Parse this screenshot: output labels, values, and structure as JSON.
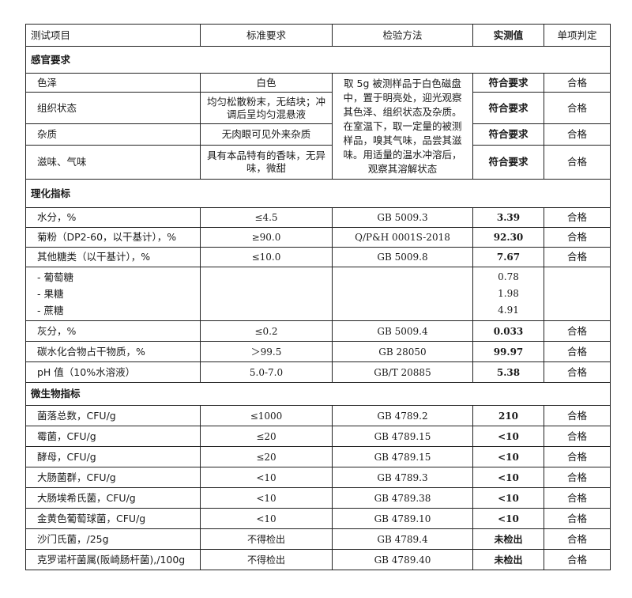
{
  "header": [
    "测试项目",
    "标准要求",
    "检验方法",
    "实测值",
    "单项判定"
  ],
  "sensory": {
    "title": "感官要求",
    "method": "取 5g 被测样品于白色磁盘中，置于明亮处，迎光观察其色泽、组织状态及杂质。在室温下，取一定量的被测样品，嗅其气味，品尝其滋味。用适量的温水冲溶后，观察其溶解状态",
    "rows": [
      {
        "item": "色泽",
        "standard": "白色",
        "value": "符合要求",
        "verdict": "合格"
      },
      {
        "item": "组织状态",
        "standard": "均匀松散粉末，无结块；冲调后呈均匀混悬液",
        "value": "符合要求",
        "verdict": "合格"
      },
      {
        "item": "杂质",
        "standard": "无肉眼可见外来杂质",
        "value": "符合要求",
        "verdict": "合格"
      },
      {
        "item": "滋味、气味",
        "standard": "具有本品特有的香味，无异味，微甜",
        "value": "符合要求",
        "verdict": "合格"
      }
    ]
  },
  "physchem": {
    "title": "理化指标",
    "rows_a": [
      {
        "item": "水分，%",
        "standard": "≤4.5",
        "method": "GB 5009.3",
        "value": "3.39",
        "verdict": "合格"
      },
      {
        "item": "菊粉（DP2-60，以干基计），%",
        "standard": "≥90.0",
        "method": "Q/P&H 0001S-2018",
        "value": "92.30",
        "verdict": "合格"
      },
      {
        "item": "其他糖类（以干基计），%",
        "standard": "≤10.0",
        "method": "GB 5009.8",
        "value": "7.67",
        "verdict": "合格"
      }
    ],
    "sub_items": [
      {
        "item": "- 葡萄糖",
        "value": "0.78"
      },
      {
        "item": "- 果糖",
        "value": "1.98"
      },
      {
        "item": "- 蔗糖",
        "value": "4.91"
      }
    ],
    "rows_b": [
      {
        "item": "灰分，%",
        "standard": "≤0.2",
        "method": "GB 5009.4",
        "value": "0.033",
        "verdict": "合格"
      },
      {
        "item": "碳水化合物占干物质，%",
        "standard": "＞99.5",
        "method": "GB 28050",
        "value": "99.97",
        "verdict": "合格"
      },
      {
        "item": "pH 值（10%水溶液）",
        "standard": "5.0-7.0",
        "method": "GB/T 20885",
        "value": "5.38",
        "verdict": "合格"
      }
    ]
  },
  "micro": {
    "title": "微生物指标",
    "rows": [
      {
        "item": "菌落总数，CFU/g",
        "standard": "≤1000",
        "method": "GB 4789.2",
        "value": "210",
        "verdict": "合格"
      },
      {
        "item": "霉菌，CFU/g",
        "standard": "≤20",
        "method": "GB 4789.15",
        "value": "<10",
        "verdict": "合格"
      },
      {
        "item": "酵母，CFU/g",
        "standard": "≤20",
        "method": "GB 4789.15",
        "value": "<10",
        "verdict": "合格"
      },
      {
        "item": "大肠菌群，CFU/g",
        "standard": "<10",
        "method": "GB 4789.3",
        "value": "<10",
        "verdict": "合格"
      },
      {
        "item": "大肠埃希氏菌，CFU/g",
        "standard": "<10",
        "method": "GB 4789.38",
        "value": "<10",
        "verdict": "合格"
      },
      {
        "item": "金黄色葡萄球菌，CFU/g",
        "standard": "<10",
        "method": "GB 4789.10",
        "value": "<10",
        "verdict": "合格"
      },
      {
        "item": "沙门氏菌，/25g",
        "standard": "不得检出",
        "method": "GB 4789.4",
        "value": "未检出",
        "verdict": "合格"
      },
      {
        "item": "克罗诺杆菌属(阪崎肠杆菌),/100g",
        "standard": "不得检出",
        "method": "GB 4789.40",
        "value": "未检出",
        "verdict": "合格"
      }
    ]
  }
}
